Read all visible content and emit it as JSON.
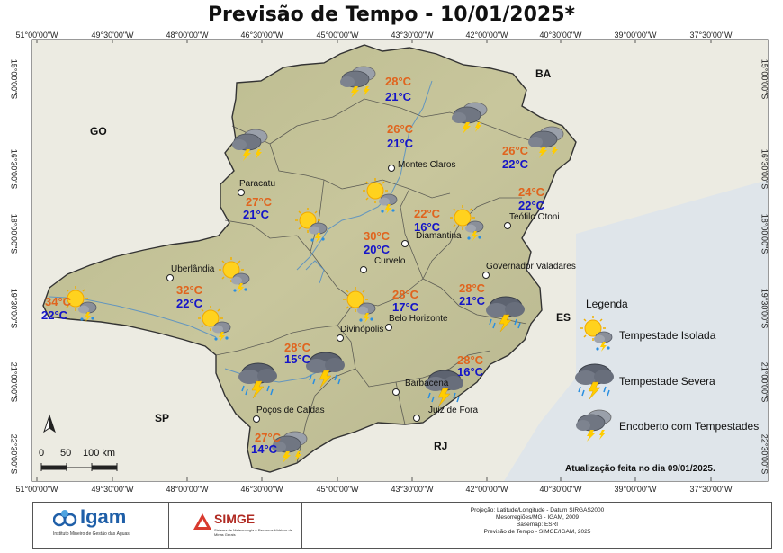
{
  "title": "Previsão de Tempo - 10/01/2025*",
  "coords_top": [
    "51°00'00\"W",
    "49°30'00\"W",
    "48°00'00\"W",
    "46°30'00\"W",
    "45°00'00\"W",
    "43°30'00\"W",
    "42°00'00\"W",
    "40°30'00\"W",
    "39°00'00\"W",
    "37°30'00\"W"
  ],
  "coords_side": [
    "15°00'00\"S",
    "16°30'00\"S",
    "18°00'00\"S",
    "19°30'00\"S",
    "21°00'00\"S",
    "22°30'00\"S"
  ],
  "states": {
    "go": "GO",
    "ba": "BA",
    "sp": "SP",
    "es": "ES",
    "rj": "RJ"
  },
  "cities": {
    "montes_claros": "Montes Claros",
    "paracatu": "Paracatu",
    "teofilo_otoni": "Teófilo Otoni",
    "diamantina": "Diamantina",
    "curvelo": "Curvelo",
    "uberlandia": "Uberlândia",
    "governador_valadares": "Governador Valadares",
    "belo_horizonte": "Belo Horizonte",
    "divinopolis": "Divinópolis",
    "barbacena": "Barbacena",
    "pocos": "Poços de Caldas",
    "juiz_de_fora": "Juiz de Fora"
  },
  "temps": {
    "r1": {
      "max": "28°C",
      "min": "21°C",
      "icon": "overcast-storm"
    },
    "r2": {
      "max": "26°C",
      "min": "21°C",
      "icon": "overcast-storm"
    },
    "r3": {
      "max": "26°C",
      "min": "22°C",
      "icon": "overcast-storm"
    },
    "r4": {
      "max": "27°C",
      "min": "21°C",
      "icon": "isolated-storm"
    },
    "r5": {
      "max": "24°C",
      "min": "22°C",
      "icon": "isolated-storm"
    },
    "r6": {
      "max": "22°C",
      "min": "16°C",
      "icon": "isolated-storm"
    },
    "r7": {
      "max": "30°C",
      "min": "20°C",
      "icon": "isolated-storm"
    },
    "r8": {
      "max": "32°C",
      "min": "22°C",
      "icon": "isolated-storm"
    },
    "r9": {
      "max": "34°C",
      "min": "22°C",
      "icon": "isolated-storm"
    },
    "r10": {
      "max": "28°C",
      "min": "17°C",
      "icon": "isolated-storm"
    },
    "r11": {
      "max": "28°C",
      "min": "21°C",
      "icon": "severe-storm"
    },
    "r12": {
      "max": "28°C",
      "min": "15°C",
      "icon": "severe-storm"
    },
    "r13": {
      "max": "28°C",
      "min": "16°C",
      "icon": "severe-storm"
    },
    "r14": {
      "max": "27°C",
      "min": "14°C",
      "icon": "overcast-storm"
    }
  },
  "legend": {
    "title": "Legenda",
    "isolated": "Tempestade Isolada",
    "severe": "Tempestade Severa",
    "overcast": "Encoberto com Tempestades"
  },
  "scale": {
    "s0": "0",
    "s50": "50",
    "s100": "100 km"
  },
  "update_note": "Atualização feita no dia 09/01/2025.",
  "footer": {
    "igam": "Igam",
    "igam_sub": "Instituto Mineiro de Gestão das Águas",
    "simge": "SIMGE",
    "simge_sub": "Sistema de Meteorologia e Recursos Hídricos de Minas Gerais",
    "line1": "Projeção: Latitude/Longitude - Datum SIRGAS2000",
    "line2": "Mesorregiões/MG - IGAM, 2009",
    "line3": "Basemap: ESRI",
    "line4": "Previsão de Tempo - SIMGE/IGAM, 2025"
  },
  "colors": {
    "max": "#e0641e",
    "min": "#1414c8",
    "map_fill": "#c9c9a0",
    "outside": "#e6e6dc",
    "border": "#333333"
  }
}
